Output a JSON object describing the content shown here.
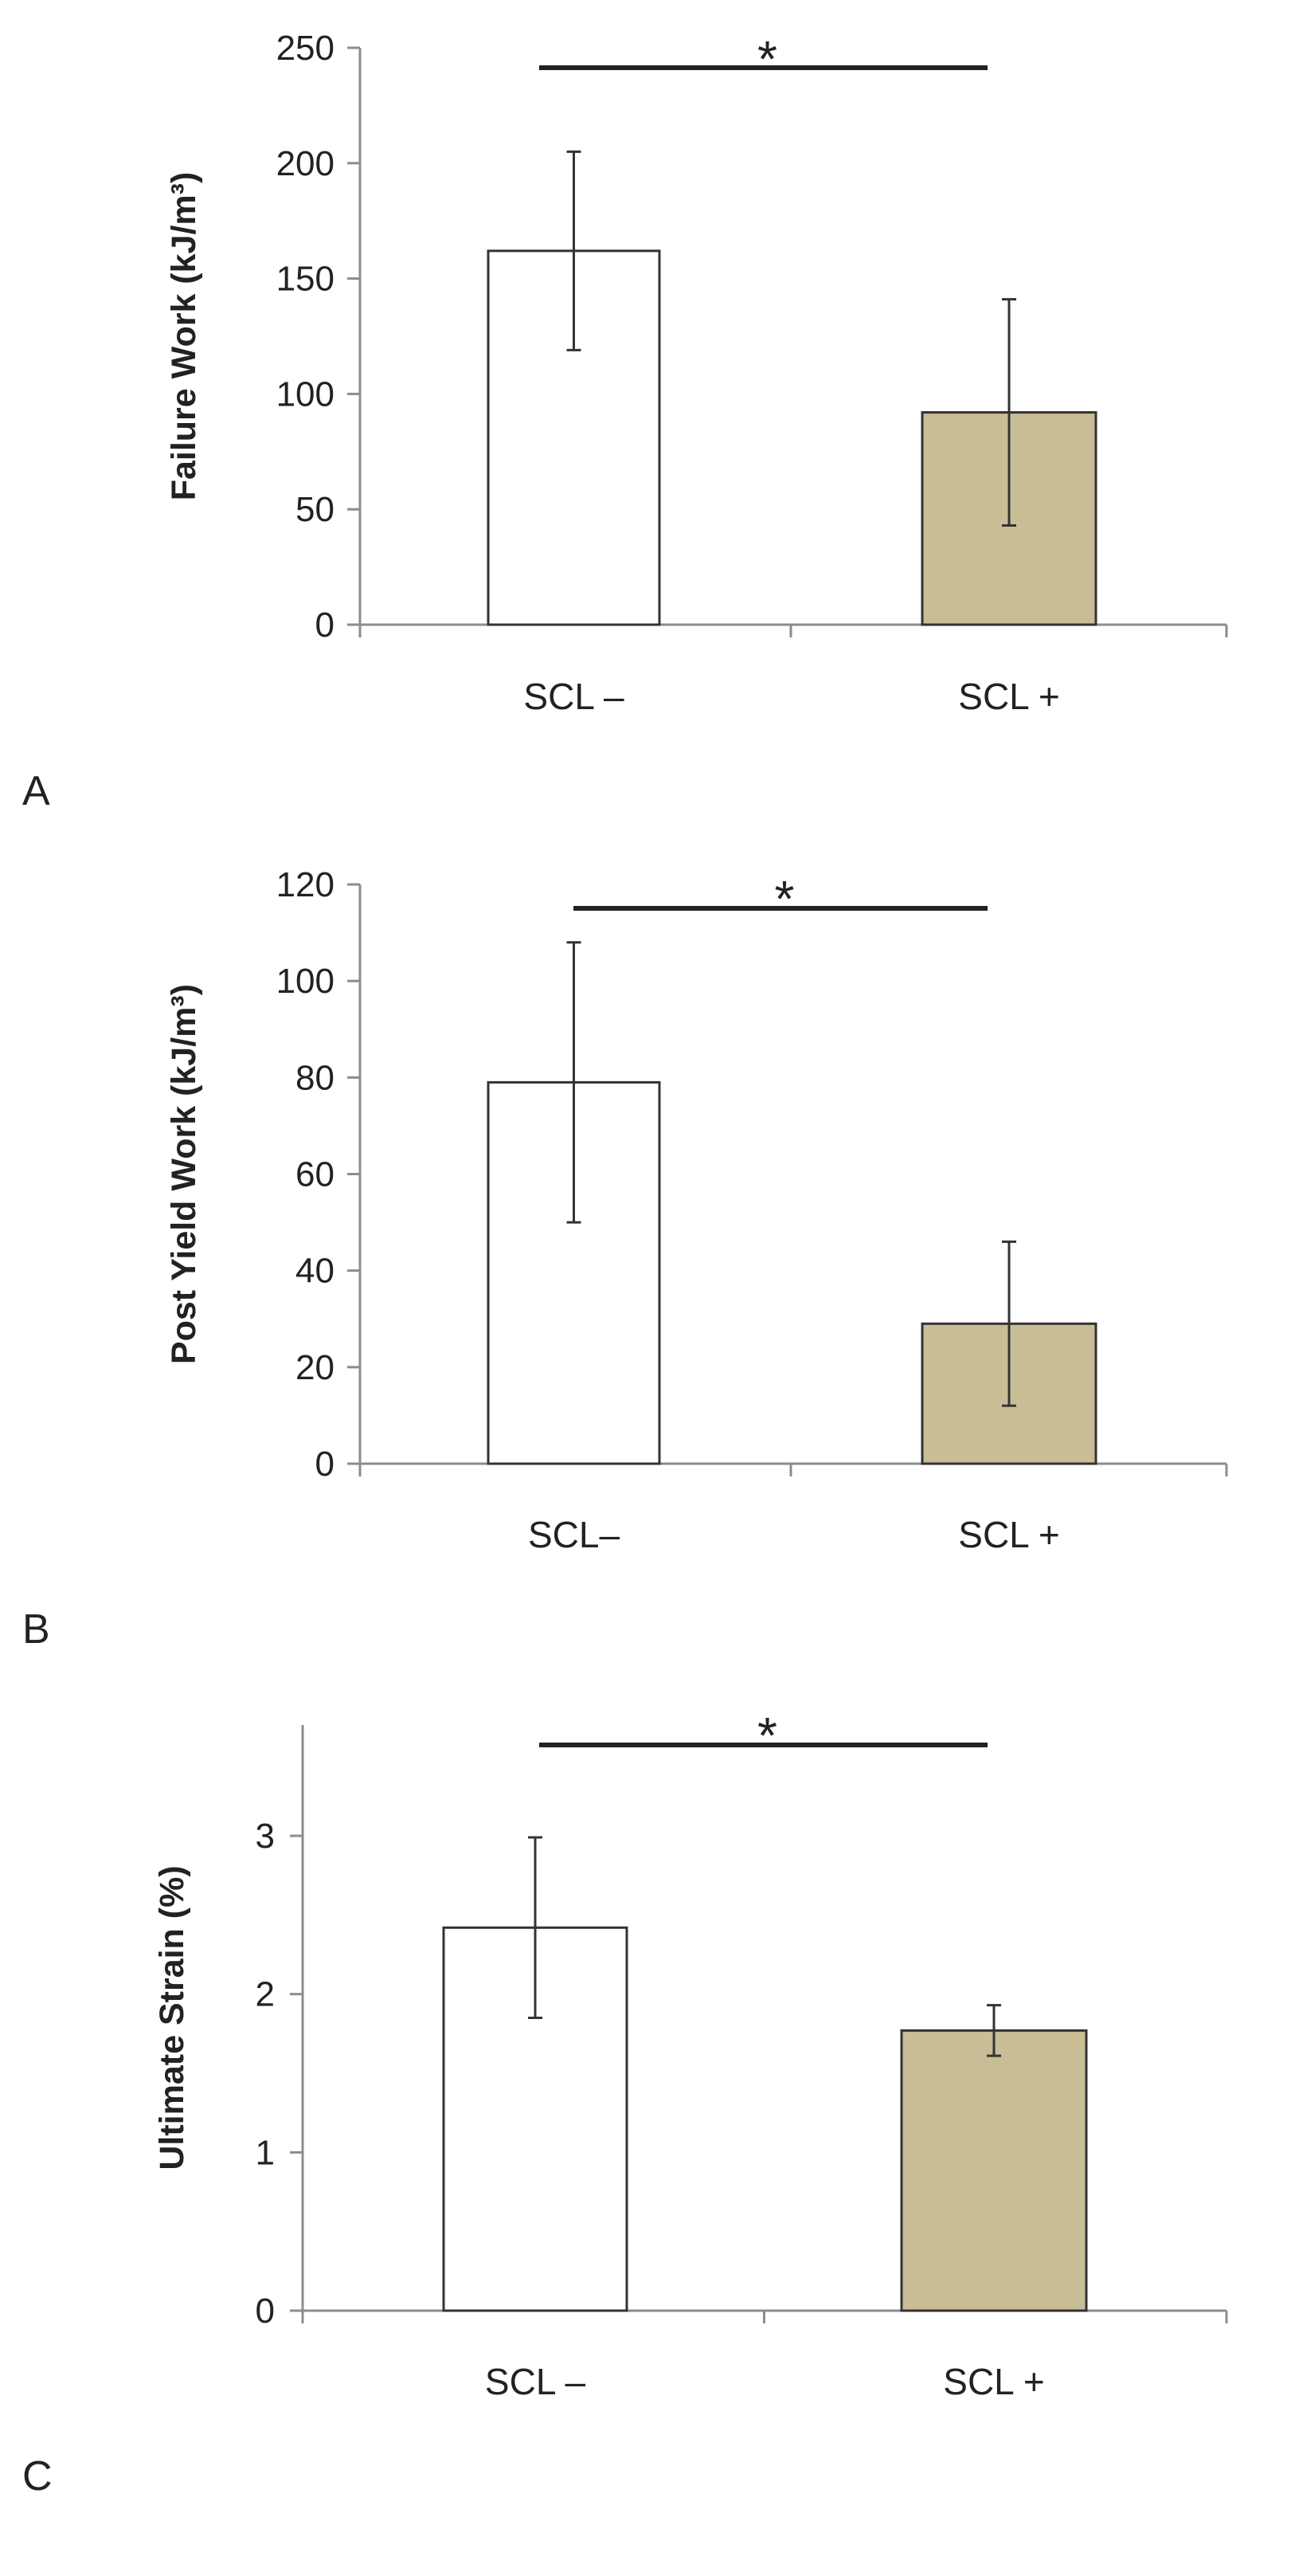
{
  "chart_data": [
    {
      "type": "bar",
      "panel": "A",
      "title": "",
      "xlabel": "",
      "ylabel": "Failure Work (kJ/m³)",
      "categories": [
        "SCL –",
        "SCL +"
      ],
      "values": [
        162,
        92
      ],
      "errors": [
        43,
        49
      ],
      "bar_colors": [
        "#ffffff",
        "#c9bd95"
      ],
      "ylim": [
        0,
        250
      ],
      "yticks": [
        0,
        50,
        100,
        150,
        200,
        250
      ],
      "significance": "*",
      "grid": false
    },
    {
      "type": "bar",
      "panel": "B",
      "title": "",
      "xlabel": "",
      "ylabel": "Post Yield Work (kJ/m³)",
      "categories": [
        "SCL–",
        "SCL +"
      ],
      "values": [
        79,
        29
      ],
      "errors": [
        29,
        17
      ],
      "bar_colors": [
        "#ffffff",
        "#c9bd95"
      ],
      "ylim": [
        0,
        120
      ],
      "yticks": [
        0,
        20,
        40,
        60,
        80,
        100,
        120
      ],
      "significance": "*",
      "grid": false
    },
    {
      "type": "bar",
      "panel": "C",
      "title": "",
      "xlabel": "",
      "ylabel": "Ultimate Strain (%)",
      "categories": [
        "SCL –",
        "SCL +"
      ],
      "values": [
        2.42,
        1.77
      ],
      "errors": [
        0.57,
        0.16
      ],
      "bar_colors": [
        "#ffffff",
        "#c9bd95"
      ],
      "ylim": [
        0,
        3.7
      ],
      "yticks": [
        0,
        1,
        2,
        3
      ],
      "significance": "*",
      "grid": false
    }
  ],
  "colors": {
    "axis": "#8c8c8c",
    "bar_edge": "#333333",
    "error_bar": "#333333",
    "significance_line": "#222222"
  }
}
